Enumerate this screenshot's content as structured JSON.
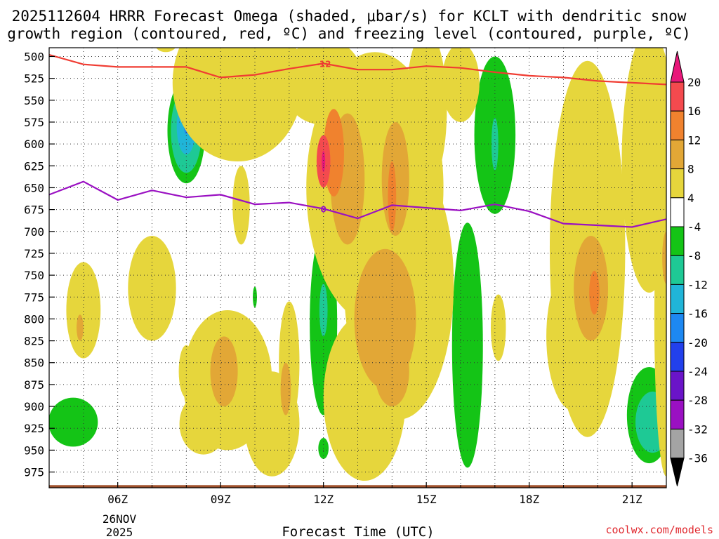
{
  "chart_data": {
    "type": "heatmap",
    "title_lines": [
      "2025112604 HRRR Forecast Omega (shaded, μbar/s) for KCLT with dendritic snow",
      "growth region (contoured, red, ºC) and freezing level (contoured, purple, ºC)"
    ],
    "xlabel": "Forecast Time (UTC)",
    "ylabel": "",
    "x_hours_utc": [
      4,
      5,
      6,
      7,
      8,
      9,
      10,
      11,
      12,
      13,
      14,
      15,
      16,
      17,
      18,
      19,
      20,
      21,
      22
    ],
    "xlim": [
      4,
      22
    ],
    "x_ticks": [
      {
        "hour": 6,
        "label": "06Z"
      },
      {
        "hour": 9,
        "label": "09Z"
      },
      {
        "hour": 12,
        "label": "12Z"
      },
      {
        "hour": 15,
        "label": "15Z"
      },
      {
        "hour": 18,
        "label": "18Z"
      },
      {
        "hour": 21,
        "label": "21Z"
      }
    ],
    "date_labels": [
      "26NOV",
      "2025"
    ],
    "y_levels_mb": [
      500,
      525,
      550,
      575,
      600,
      625,
      650,
      675,
      700,
      725,
      750,
      775,
      800,
      825,
      850,
      875,
      900,
      925,
      950,
      975
    ],
    "ylim": [
      490,
      993
    ],
    "ground_pressure": 990,
    "colorbar_ticks": [
      20,
      16,
      12,
      8,
      4,
      -4,
      -8,
      -12,
      -16,
      -20,
      -24,
      -28,
      -32,
      -36
    ],
    "colorbar_bins": [
      {
        "low": 20,
        "high": 24,
        "color": "#e8187a"
      },
      {
        "low": 16,
        "high": 20,
        "color": "#f44a4e"
      },
      {
        "low": 12,
        "high": 16,
        "color": "#f0822e"
      },
      {
        "low": 8,
        "high": 12,
        "color": "#e2a736"
      },
      {
        "low": 4,
        "high": 8,
        "color": "#e6d63c"
      },
      {
        "low": -4,
        "high": 4,
        "color": "#ffffff"
      },
      {
        "low": -8,
        "high": -4,
        "color": "#14c416"
      },
      {
        "low": -12,
        "high": -8,
        "color": "#1ec995"
      },
      {
        "low": -16,
        "high": -12,
        "color": "#20b5d8"
      },
      {
        "low": -20,
        "high": -16,
        "color": "#1d88f2"
      },
      {
        "low": -24,
        "high": -20,
        "color": "#2240ec"
      },
      {
        "low": -28,
        "high": -24,
        "color": "#6a14c8"
      },
      {
        "low": -32,
        "high": -28,
        "color": "#9a10c2"
      },
      {
        "low": -36,
        "high": -32,
        "color": "#a4a4a4"
      },
      {
        "low": -40,
        "high": -36,
        "color": "#000000"
      }
    ],
    "omega_field": [
      {
        "hour": 8.0,
        "pressure": 585,
        "hr": 0.55,
        "pr": 60,
        "value": -6
      },
      {
        "hour": 8.0,
        "pressure": 585,
        "hr": 0.45,
        "pr": 48,
        "value": -10
      },
      {
        "hour": 8.0,
        "pressure": 580,
        "hr": 0.28,
        "pr": 32,
        "value": -14
      },
      {
        "hour": 8.0,
        "pressure": 575,
        "hr": 0.08,
        "pr": 14,
        "value": -18
      },
      {
        "hour": 12.0,
        "pressure": 500,
        "hr": 0.35,
        "pr": 18,
        "value": -6
      },
      {
        "hour": 12.0,
        "pressure": 497,
        "hr": 0.12,
        "pr": 6,
        "value": -14
      },
      {
        "hour": 17.0,
        "pressure": 590,
        "hr": 0.6,
        "pr": 90,
        "value": -6
      },
      {
        "hour": 17.0,
        "pressure": 600,
        "hr": 0.1,
        "pr": 30,
        "value": -10
      },
      {
        "hour": 12.0,
        "pressure": 805,
        "hr": 0.4,
        "pr": 105,
        "value": -6
      },
      {
        "hour": 12.0,
        "pressure": 790,
        "hr": 0.12,
        "pr": 30,
        "value": -10
      },
      {
        "hour": 4.7,
        "pressure": 918,
        "hr": 0.72,
        "pr": 28,
        "value": -6
      },
      {
        "hour": 12.0,
        "pressure": 948,
        "hr": 0.15,
        "pr": 12,
        "value": -6
      },
      {
        "hour": 10.0,
        "pressure": 775,
        "hr": 0.06,
        "pr": 12,
        "value": -6
      },
      {
        "hour": 10.0,
        "pressure": 920,
        "hr": 0.06,
        "pr": 12,
        "value": -6
      },
      {
        "hour": 16.2,
        "pressure": 830,
        "hr": 0.45,
        "pr": 140,
        "value": -6
      },
      {
        "hour": 21.5,
        "pressure": 910,
        "hr": 0.65,
        "pr": 55,
        "value": -6
      },
      {
        "hour": 21.6,
        "pressure": 918,
        "hr": 0.5,
        "pr": 35,
        "value": -10
      },
      {
        "hour": 9.5,
        "pressure": 530,
        "hr": 1.9,
        "pr": 90,
        "value": 6
      },
      {
        "hour": 12.0,
        "pressure": 520,
        "hr": 1.1,
        "pr": 40,
        "value": 6
      },
      {
        "hour": 13.5,
        "pressure": 650,
        "hr": 2.0,
        "pr": 155,
        "value": 6
      },
      {
        "hour": 14.2,
        "pressure": 760,
        "hr": 1.6,
        "pr": 155,
        "value": 6
      },
      {
        "hour": 12.0,
        "pressure": 548,
        "hr": 1.0,
        "pr": 30,
        "value": 6
      },
      {
        "hour": 15.0,
        "pressure": 560,
        "hr": 0.6,
        "pr": 90,
        "value": 6
      },
      {
        "hour": 10.5,
        "pressure": 920,
        "hr": 0.8,
        "pr": 60,
        "value": 6
      },
      {
        "hour": 13.2,
        "pressure": 890,
        "hr": 1.2,
        "pr": 95,
        "value": 6
      },
      {
        "hour": 9.2,
        "pressure": 870,
        "hr": 1.3,
        "pr": 80,
        "value": 6
      },
      {
        "hour": 7.0,
        "pressure": 765,
        "hr": 0.7,
        "pr": 60,
        "value": 6
      },
      {
        "hour": 5.0,
        "pressure": 790,
        "hr": 0.5,
        "pr": 55,
        "value": 6
      },
      {
        "hour": 8.5,
        "pressure": 920,
        "hr": 0.7,
        "pr": 35,
        "value": 6
      },
      {
        "hour": 10.0,
        "pressure": 560,
        "hr": 0.9,
        "pr": 30,
        "value": 6
      },
      {
        "hour": 19.7,
        "pressure": 720,
        "hr": 1.1,
        "pr": 215,
        "value": 6
      },
      {
        "hour": 19.3,
        "pressure": 820,
        "hr": 0.8,
        "pr": 85,
        "value": 6
      },
      {
        "hour": 21.5,
        "pressure": 620,
        "hr": 0.8,
        "pr": 150,
        "value": 6
      },
      {
        "hour": 22.0,
        "pressure": 800,
        "hr": 0.35,
        "pr": 180,
        "value": 6
      },
      {
        "hour": 16.0,
        "pressure": 530,
        "hr": 0.55,
        "pr": 45,
        "value": 6
      },
      {
        "hour": 11.0,
        "pressure": 850,
        "hr": 0.3,
        "pr": 70,
        "value": 6
      },
      {
        "hour": 17.1,
        "pressure": 810,
        "hr": 0.22,
        "pr": 38,
        "value": 6
      },
      {
        "hour": 7.4,
        "pressure": 487,
        "hr": 0.3,
        "pr": 8,
        "value": 6
      },
      {
        "hour": 9.6,
        "pressure": 670,
        "hr": 0.25,
        "pr": 45,
        "value": 6
      },
      {
        "hour": 8.0,
        "pressure": 860,
        "hr": 0.22,
        "pr": 30,
        "value": 6
      },
      {
        "hour": 12.7,
        "pressure": 640,
        "hr": 0.5,
        "pr": 75,
        "value": 10
      },
      {
        "hour": 14.1,
        "pressure": 640,
        "hr": 0.4,
        "pr": 65,
        "value": 10
      },
      {
        "hour": 13.8,
        "pressure": 800,
        "hr": 0.9,
        "pr": 80,
        "value": 10
      },
      {
        "hour": 14.0,
        "pressure": 860,
        "hr": 0.5,
        "pr": 40,
        "value": 10
      },
      {
        "hour": 12.3,
        "pressure": 610,
        "hr": 0.3,
        "pr": 50,
        "value": 14
      },
      {
        "hour": 14.0,
        "pressure": 660,
        "hr": 0.12,
        "pr": 40,
        "value": 14
      },
      {
        "hour": 12.0,
        "pressure": 620,
        "hr": 0.2,
        "pr": 30,
        "value": 18
      },
      {
        "hour": 12.0,
        "pressure": 620,
        "hr": 0.05,
        "pr": 12,
        "value": 22
      },
      {
        "hour": 9.1,
        "pressure": 860,
        "hr": 0.4,
        "pr": 40,
        "value": 10
      },
      {
        "hour": 10.9,
        "pressure": 880,
        "hr": 0.15,
        "pr": 30,
        "value": 10
      },
      {
        "hour": 4.9,
        "pressure": 810,
        "hr": 0.1,
        "pr": 15,
        "value": 10
      },
      {
        "hour": 19.8,
        "pressure": 765,
        "hr": 0.5,
        "pr": 60,
        "value": 10
      },
      {
        "hour": 19.9,
        "pressure": 770,
        "hr": 0.15,
        "pr": 25,
        "value": 14
      },
      {
        "hour": 22.0,
        "pressure": 730,
        "hr": 0.12,
        "pr": 30,
        "value": 10
      }
    ],
    "dendritic_growth_contour": {
      "label": "-12",
      "color": "#f03c32",
      "hours": [
        4,
        5,
        6,
        7,
        8,
        9,
        10,
        11,
        12,
        13,
        14,
        15,
        16,
        17,
        18,
        19,
        20,
        21,
        22
      ],
      "pressures": [
        498,
        509,
        512,
        512,
        512,
        524,
        521,
        514,
        508,
        515,
        515,
        511,
        513,
        518,
        522,
        524,
        528,
        530,
        532
      ]
    },
    "freezing_level_contour": {
      "label": "0",
      "color": "#9a10c2",
      "hours": [
        4,
        5,
        6,
        7,
        8,
        9,
        10,
        11,
        12,
        13,
        14,
        15,
        16,
        17,
        18,
        19,
        20,
        21,
        22
      ],
      "pressures": [
        658,
        643,
        664,
        653,
        661,
        658,
        669,
        667,
        674,
        685,
        670,
        673,
        676,
        669,
        677,
        691,
        693,
        695,
        686
      ]
    }
  },
  "credit": "coolwx.com/models"
}
